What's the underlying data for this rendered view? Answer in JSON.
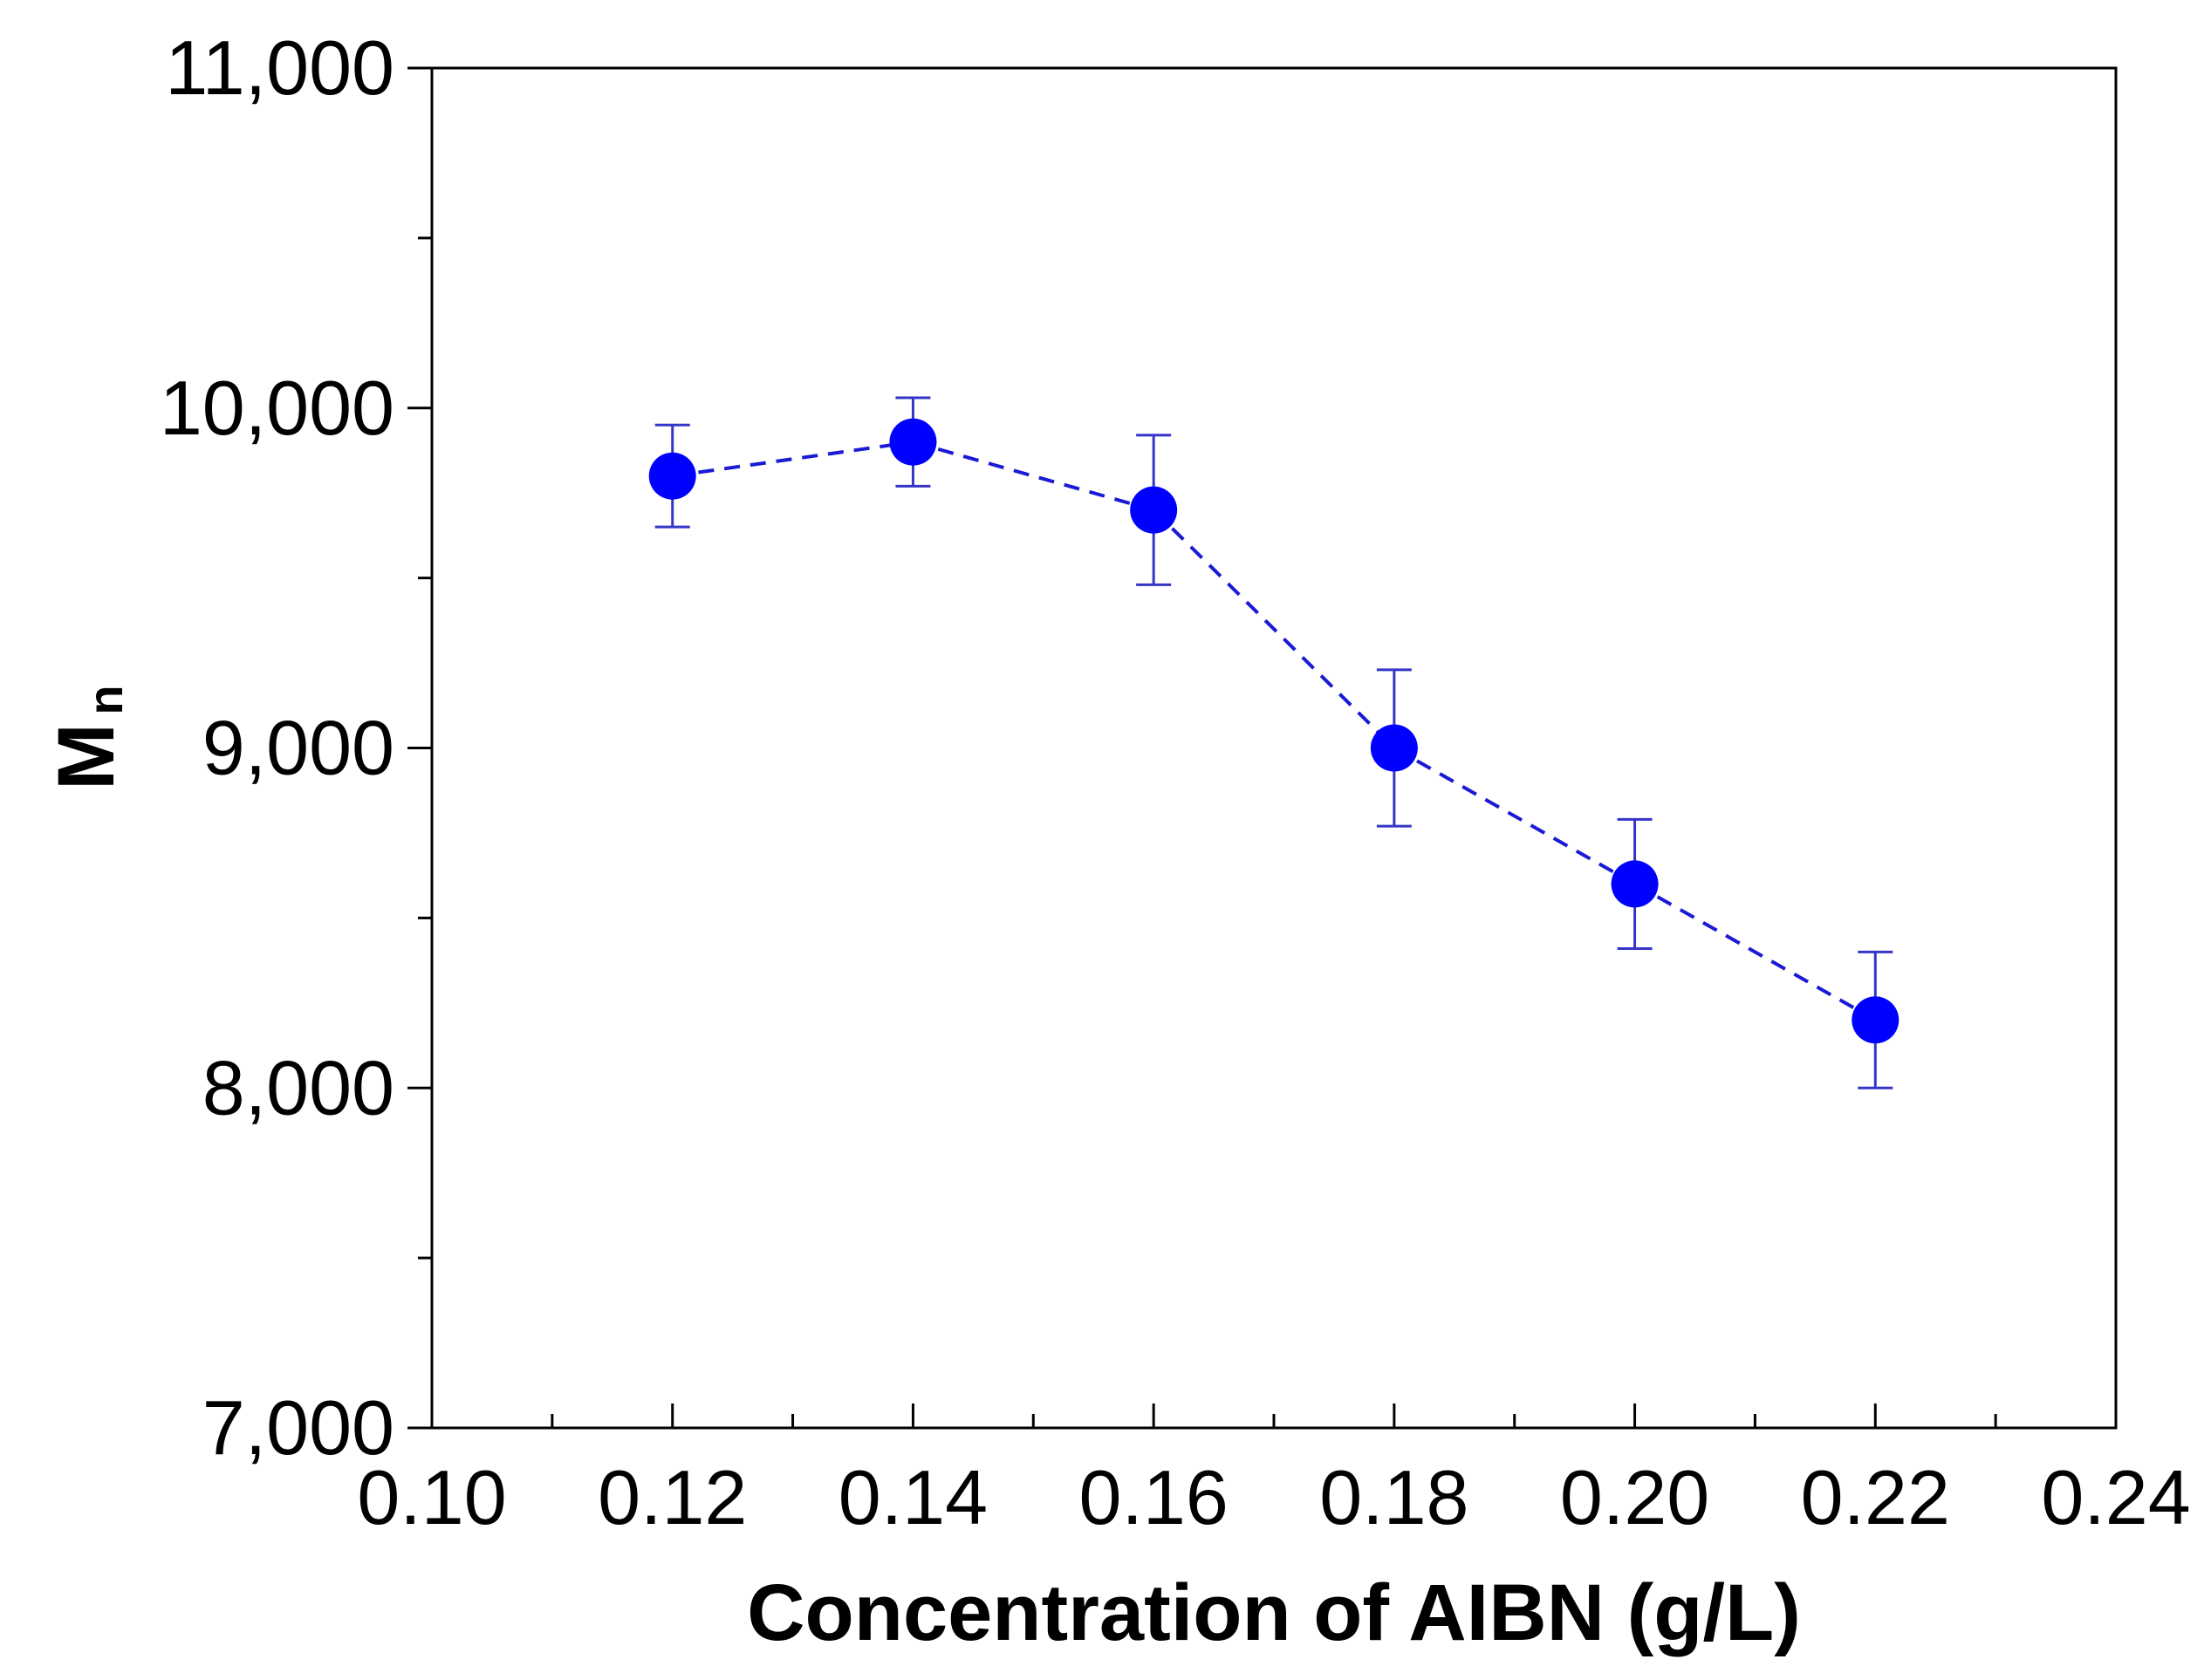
{
  "chart_data": {
    "type": "scatter",
    "title": "",
    "xlabel": "Concentration of AIBN (g/L)",
    "ylabel": {
      "main": "M",
      "subscript": "n"
    },
    "xlim": [
      0.1,
      0.24
    ],
    "ylim": [
      7000,
      11000
    ],
    "x_major_ticks": [
      0.1,
      0.12,
      0.14,
      0.16,
      0.18,
      0.2,
      0.22,
      0.24
    ],
    "x_tick_labels": [
      "0.10",
      "0.12",
      "0.14",
      "0.16",
      "0.18",
      "0.20",
      "0.22",
      "0.24"
    ],
    "x_minor_ticks": [
      0.11,
      0.13,
      0.15,
      0.17,
      0.19,
      0.21,
      0.23
    ],
    "y_major_ticks": [
      7000,
      8000,
      9000,
      10000,
      11000
    ],
    "y_tick_labels": [
      "7,000",
      "8,000",
      "9,000",
      "10,000",
      "11,000"
    ],
    "y_minor_ticks": [
      7500,
      8500,
      9500,
      10500
    ],
    "grid": false,
    "series": [
      {
        "name": "Mn",
        "marker": "circle",
        "line_style": "dashed",
        "color": "#0000ff",
        "line_color": "#1a1ad6",
        "errorbar_color": "#3535c8",
        "x": [
          0.12,
          0.14,
          0.16,
          0.18,
          0.2,
          0.22
        ],
        "y": [
          9800,
          9900,
          9700,
          9000,
          8600,
          8200
        ],
        "y_err_plus": [
          150,
          130,
          220,
          230,
          190,
          200
        ],
        "y_err_minus": [
          150,
          130,
          220,
          230,
          190,
          200
        ]
      }
    ]
  }
}
